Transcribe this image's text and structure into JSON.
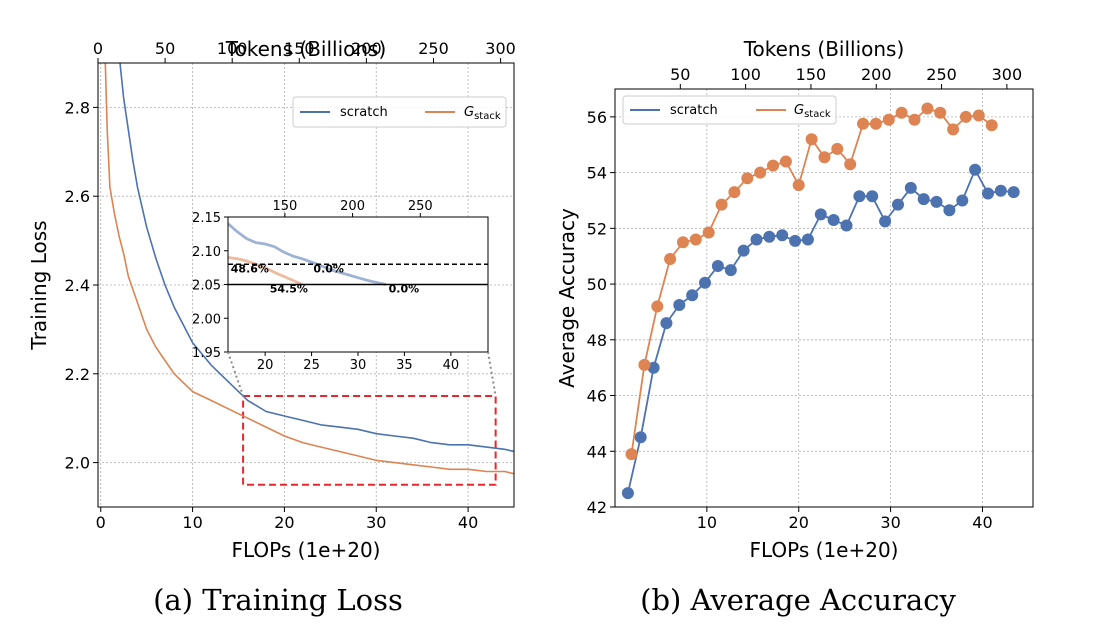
{
  "chart_data": [
    {
      "type": "line",
      "caption": "(a) Training Loss",
      "xlabel": "FLOPs (1e+20)",
      "ylabel": "Training Loss",
      "top_xlabel": "Tokens (Billions)",
      "xlim": [
        -0.3,
        45
      ],
      "ylim": [
        1.9,
        2.9
      ],
      "xticks": [
        0,
        10,
        20,
        30,
        40
      ],
      "yticks": [
        2.0,
        2.2,
        2.4,
        2.6,
        2.8
      ],
      "top_xlim": [
        0,
        310
      ],
      "top_xticks": [
        0,
        50,
        100,
        150,
        200,
        250,
        300
      ],
      "grid": true,
      "legend": "top-right",
      "series": [
        {
          "name": "scratch",
          "color": "#4c72b0",
          "x": [
            2.1,
            2.5,
            3,
            3.5,
            4,
            5,
            6,
            7,
            8,
            9,
            10,
            12,
            14,
            16,
            18,
            20,
            22,
            24,
            26,
            28,
            30,
            32,
            34,
            36,
            38,
            40,
            42,
            44,
            45
          ],
          "y": [
            2.9,
            2.82,
            2.75,
            2.68,
            2.62,
            2.53,
            2.46,
            2.4,
            2.35,
            2.31,
            2.27,
            2.22,
            2.18,
            2.14,
            2.115,
            2.105,
            2.095,
            2.085,
            2.08,
            2.075,
            2.065,
            2.06,
            2.055,
            2.045,
            2.04,
            2.04,
            2.035,
            2.03,
            2.025
          ]
        },
        {
          "name": "G_stack",
          "color": "#dd8452",
          "x": [
            0.5,
            0.7,
            1,
            1.5,
            2,
            2.5,
            3,
            4,
            5,
            6,
            7,
            8,
            9,
            10,
            12,
            14,
            16,
            18,
            20,
            22,
            24,
            26,
            28,
            30,
            32,
            34,
            36,
            38,
            40,
            42,
            44,
            45
          ],
          "y": [
            2.9,
            2.75,
            2.62,
            2.56,
            2.51,
            2.47,
            2.42,
            2.36,
            2.3,
            2.26,
            2.23,
            2.2,
            2.18,
            2.16,
            2.14,
            2.12,
            2.1,
            2.08,
            2.06,
            2.045,
            2.035,
            2.025,
            2.015,
            2.005,
            2.0,
            1.995,
            1.99,
            1.985,
            1.985,
            1.98,
            1.98,
            1.975
          ]
        }
      ],
      "zoom_box": {
        "xlim": [
          15.5,
          43
        ],
        "ylim": [
          1.95,
          2.15
        ]
      },
      "inset": {
        "xlim": [
          16,
          44
        ],
        "ylim": [
          1.95,
          2.15
        ],
        "xticks": [
          20,
          25,
          30,
          35,
          40
        ],
        "yticks": [
          1.95,
          2.0,
          2.05,
          2.1,
          2.15
        ],
        "top_xlim": [
          108,
          300
        ],
        "top_xticks": [
          150,
          200,
          250
        ],
        "hlines": [
          {
            "y": 2.08,
            "style": "dashed"
          },
          {
            "y": 2.05,
            "style": "solid"
          }
        ],
        "annotations": [
          {
            "text": "48.6%",
            "x": 16.3,
            "y": 2.068
          },
          {
            "text": "0.0%",
            "x": 25.2,
            "y": 2.068
          },
          {
            "text": "54.5%",
            "x": 20.5,
            "y": 2.038
          },
          {
            "text": "0.0%",
            "x": 33.3,
            "y": 2.038
          }
        ],
        "series": [
          {
            "name": "scratch",
            "x": [
              16,
              17,
              18,
              19,
              20,
              21,
              22,
              23,
              24,
              25,
              26,
              27,
              28,
              29,
              30,
              31,
              32,
              33
            ],
            "y": [
              2.14,
              2.128,
              2.118,
              2.112,
              2.11,
              2.106,
              2.098,
              2.092,
              2.088,
              2.083,
              2.078,
              2.072,
              2.068,
              2.064,
              2.06,
              2.056,
              2.053,
              2.05
            ]
          },
          {
            "name": "G_stack",
            "x": [
              16,
              17,
              18,
              19,
              20,
              21,
              22,
              23,
              24
            ],
            "y": [
              2.09,
              2.088,
              2.085,
              2.08,
              2.075,
              2.068,
              2.062,
              2.056,
              2.05
            ]
          }
        ]
      }
    },
    {
      "type": "line",
      "caption": "(b) Average Accuracy",
      "xlabel": "FLOPs (1e+20)",
      "ylabel": "Average Accuracy",
      "top_xlabel": "Tokens (Billions)",
      "xlim": [
        0,
        45.5
      ],
      "ylim": [
        42,
        57
      ],
      "xticks": [
        10,
        20,
        30,
        40
      ],
      "yticks": [
        42,
        44,
        46,
        48,
        50,
        52,
        54,
        56
      ],
      "top_xlim": [
        0,
        320
      ],
      "top_xticks": [
        50,
        100,
        150,
        200,
        250,
        300
      ],
      "grid": true,
      "legend": "top-left",
      "series": [
        {
          "name": "scratch",
          "color": "#4c72b0",
          "x": [
            1.4,
            2.8,
            4.2,
            5.6,
            7.0,
            8.4,
            9.8,
            11.2,
            12.6,
            14.0,
            15.4,
            16.8,
            18.2,
            19.6,
            21.0,
            22.4,
            23.8,
            25.2,
            26.6,
            28.0,
            29.4,
            30.8,
            32.2,
            33.6,
            35.0,
            36.4,
            37.8,
            39.2,
            40.6,
            42.0,
            43.4
          ],
          "y": [
            42.5,
            44.5,
            47.0,
            48.6,
            49.25,
            49.6,
            50.05,
            50.65,
            50.5,
            51.2,
            51.6,
            51.7,
            51.75,
            51.55,
            51.6,
            52.5,
            52.3,
            52.1,
            53.15,
            53.15,
            52.25,
            52.85,
            53.45,
            53.05,
            52.95,
            52.65,
            53.0,
            54.1,
            53.25,
            53.35,
            53.3
          ]
        },
        {
          "name": "G_stack",
          "color": "#dd8452",
          "x": [
            1.8,
            3.2,
            4.6,
            6.0,
            7.4,
            8.8,
            10.2,
            11.6,
            13.0,
            14.4,
            15.8,
            17.2,
            18.6,
            20.0,
            21.4,
            22.8,
            24.2,
            25.6,
            27.0,
            28.4,
            29.8,
            31.2,
            32.6,
            34.0,
            35.4,
            36.8,
            38.2,
            39.6,
            41.0
          ],
          "y": [
            43.9,
            47.1,
            49.2,
            50.9,
            51.5,
            51.6,
            51.85,
            52.85,
            53.3,
            53.8,
            54.0,
            54.25,
            54.4,
            53.55,
            55.2,
            54.55,
            54.85,
            54.3,
            55.75,
            55.75,
            55.9,
            56.15,
            55.9,
            56.3,
            56.15,
            55.55,
            56.0,
            56.05,
            55.7
          ]
        }
      ]
    }
  ]
}
